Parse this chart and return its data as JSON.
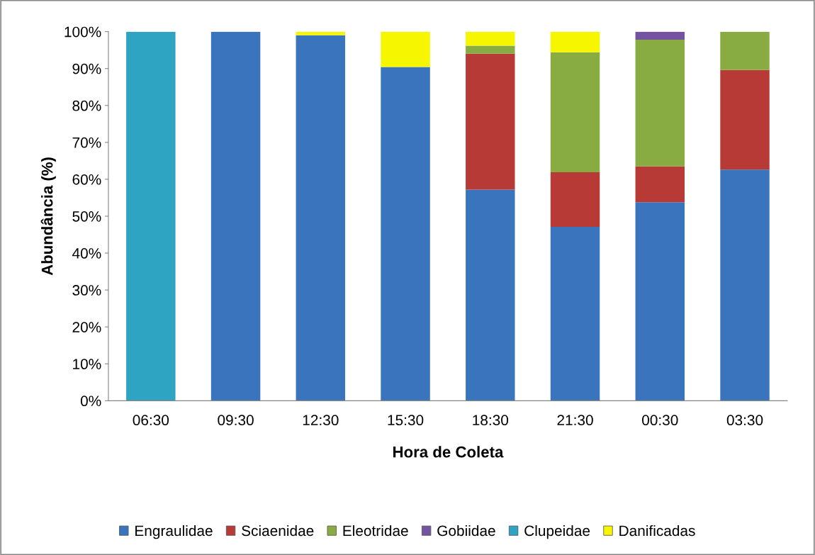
{
  "chart_data": {
    "type": "bar",
    "stacked": true,
    "xlabel": "Hora de Coleta",
    "ylabel": "Abundância (%)",
    "categories": [
      "06:30",
      "09:30",
      "12:30",
      "15:30",
      "18:30",
      "21:30",
      "00:30",
      "03:30"
    ],
    "series": [
      {
        "name": "Engraulidae",
        "color": "#3a74bd",
        "values": [
          0,
          100,
          99,
          90.4,
          57.2,
          47.1,
          53.8,
          62.6
        ]
      },
      {
        "name": "Sciaenidae",
        "color": "#b83a37",
        "values": [
          0,
          0,
          0,
          0,
          36.8,
          14.8,
          9.7,
          27.0
        ]
      },
      {
        "name": "Eleotridae",
        "color": "#89ac42",
        "values": [
          0,
          0,
          0,
          0,
          2.2,
          32.5,
          34.3,
          10.4
        ]
      },
      {
        "name": "Gobiidae",
        "color": "#7454a0",
        "values": [
          0,
          0,
          0,
          0,
          0,
          0,
          2.2,
          0
        ]
      },
      {
        "name": "Clupeidae",
        "color": "#2ea3c2",
        "values": [
          100,
          0,
          0,
          0,
          0,
          0,
          0,
          0
        ]
      },
      {
        "name": "Danificadas",
        "color": "#f6f600",
        "values": [
          0,
          0,
          1,
          9.6,
          3.8,
          5.6,
          0,
          0
        ]
      }
    ],
    "ylim": [
      0,
      100
    ],
    "yticks": [
      {
        "value": 0,
        "label": "0%"
      },
      {
        "value": 10,
        "label": "10%"
      },
      {
        "value": 20,
        "label": "20%"
      },
      {
        "value": 30,
        "label": "30%"
      },
      {
        "value": 40,
        "label": "40%"
      },
      {
        "value": 50,
        "label": "50%"
      },
      {
        "value": 60,
        "label": "60%"
      },
      {
        "value": 70,
        "label": "70%"
      },
      {
        "value": 80,
        "label": "80%"
      },
      {
        "value": 90,
        "label": "90%"
      },
      {
        "value": 100,
        "label": "100%"
      }
    ],
    "grid": false,
    "legend": "bottom"
  }
}
